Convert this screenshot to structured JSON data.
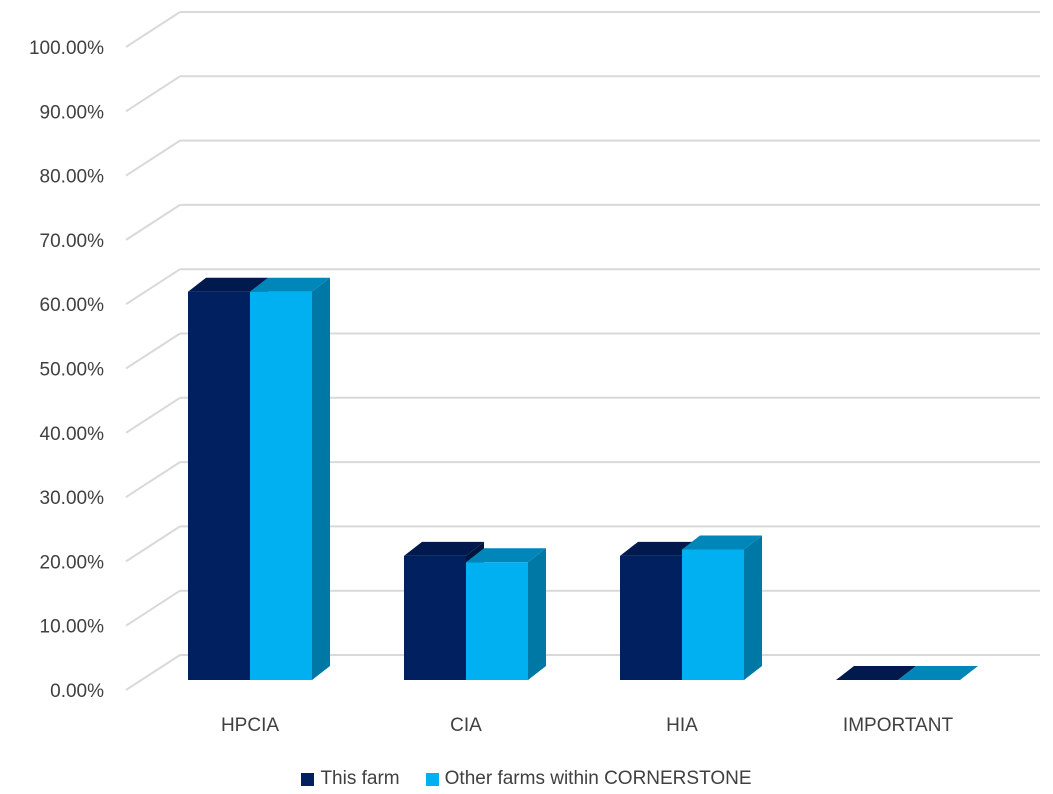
{
  "chart_data": {
    "type": "bar",
    "style": "3d-clustered-column",
    "categories": [
      "HPCIA",
      "CIA",
      "HIA",
      "IMPORTANT"
    ],
    "series": [
      {
        "name": "This farm",
        "values": [
          0.61,
          0.195,
          0.195,
          0.0
        ],
        "color": "#002060",
        "top_color": "#001a4d",
        "side_color": "#00163f"
      },
      {
        "name": "Other farms within CORNERSTONE",
        "values": [
          0.61,
          0.185,
          0.205,
          0.0
        ],
        "color": "#00b0f0",
        "top_color": "#0086b8",
        "side_color": "#0078a6"
      }
    ],
    "ylim": [
      0,
      1
    ],
    "yticks": [
      0,
      0.1,
      0.2,
      0.3,
      0.4,
      0.5,
      0.6,
      0.7,
      0.8,
      0.9,
      1.0
    ],
    "ytick_labels": [
      "0.00%",
      "10.00%",
      "20.00%",
      "30.00%",
      "40.00%",
      "50.00%",
      "60.00%",
      "70.00%",
      "80.00%",
      "90.00%",
      "100.00%"
    ],
    "grid": true,
    "grid_color": "#d9d9d9",
    "legend_position": "bottom",
    "title": "",
    "xlabel": "",
    "ylabel": ""
  }
}
